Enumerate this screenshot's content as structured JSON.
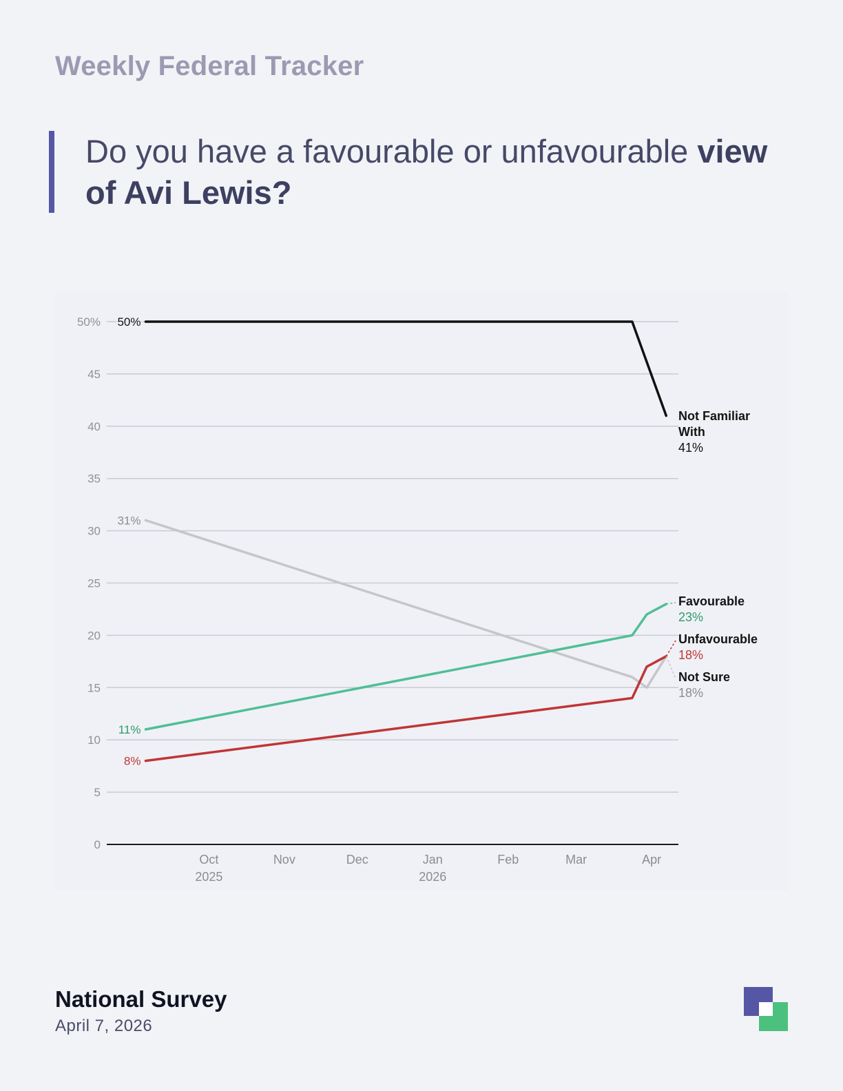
{
  "header": {
    "tracker_title": "Weekly Federal Tracker",
    "question_regular": "Do you have a favourable or unfavourable ",
    "question_bold": "view of Avi Lewis?"
  },
  "footer": {
    "survey_name": "National Survey",
    "date": "April 7, 2026"
  },
  "chart_data": {
    "type": "line",
    "title": "Do you have a favourable or unfavourable view of Avi Lewis?",
    "xlabel": "",
    "ylabel": "",
    "ylim": [
      0,
      50
    ],
    "y_ticks": [
      0,
      5,
      10,
      15,
      20,
      25,
      30,
      35,
      40,
      45,
      50
    ],
    "y_tick_labels": [
      "0",
      "5",
      "10",
      "15",
      "20",
      "25",
      "30",
      "35",
      "40",
      "45",
      "50%"
    ],
    "x_ticks": [
      {
        "date": "2025-10-01",
        "label": "Oct",
        "sub": "2025"
      },
      {
        "date": "2025-11-01",
        "label": "Nov",
        "sub": ""
      },
      {
        "date": "2025-12-01",
        "label": "Dec",
        "sub": ""
      },
      {
        "date": "2026-01-01",
        "label": "Jan",
        "sub": "2026"
      },
      {
        "date": "2026-02-01",
        "label": "Feb",
        "sub": ""
      },
      {
        "date": "2026-03-01",
        "label": "Mar",
        "sub": ""
      },
      {
        "date": "2026-04-01",
        "label": "Apr",
        "sub": ""
      }
    ],
    "x_range": [
      "2025-08-20",
      "2026-04-12"
    ],
    "series": [
      {
        "name": "Not Familiar With",
        "label_lines": [
          "Not Familiar",
          "With"
        ],
        "color": "#111111",
        "value_color": "#111111",
        "start_label": "50%",
        "end_label": "41%",
        "points": [
          [
            "2025-09-05",
            50
          ],
          [
            "2026-03-24",
            50
          ],
          [
            "2026-04-07",
            41
          ]
        ]
      },
      {
        "name": "Favourable",
        "label_lines": [
          "Favourable"
        ],
        "color": "#4fbf95",
        "value_color": "#2e9a6a",
        "start_label": "11%",
        "end_label": "23%",
        "points": [
          [
            "2025-09-05",
            11
          ],
          [
            "2026-03-24",
            20
          ],
          [
            "2026-03-30",
            22
          ],
          [
            "2026-04-07",
            23
          ]
        ]
      },
      {
        "name": "Unfavourable",
        "label_lines": [
          "Unfavourable"
        ],
        "color": "#c03534",
        "value_color": "#c03534",
        "start_label": "8%",
        "end_label": "18%",
        "points": [
          [
            "2025-09-05",
            8
          ],
          [
            "2026-03-24",
            14
          ],
          [
            "2026-03-30",
            17
          ],
          [
            "2026-04-07",
            18
          ]
        ]
      },
      {
        "name": "Not Sure",
        "label_lines": [
          "Not Sure"
        ],
        "color": "#c6c6c9",
        "value_color": "#8c8c8c",
        "start_label": "31%",
        "end_label": "18%",
        "points": [
          [
            "2025-09-05",
            31
          ],
          [
            "2026-03-24",
            16
          ],
          [
            "2026-03-30",
            15
          ],
          [
            "2026-04-07",
            18
          ]
        ]
      }
    ]
  },
  "logo": {
    "primary": "#5656a6",
    "secondary": "#4cc07f"
  }
}
